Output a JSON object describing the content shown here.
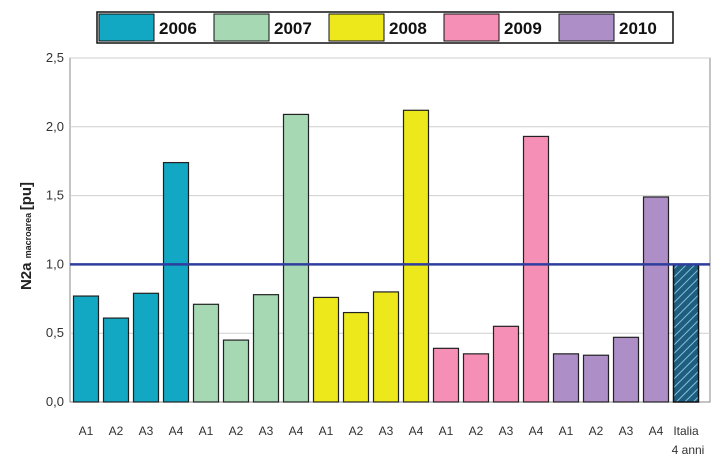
{
  "chart_data": {
    "type": "bar",
    "ylabel": {
      "main": "N2a",
      "subscript": "macroarea",
      "unit": "[pu]"
    },
    "ylim": [
      0,
      2.5
    ],
    "yticks": [
      "0,0",
      "0,5",
      "1,0",
      "1,5",
      "2,0",
      "2,5"
    ],
    "ytick_values": [
      0,
      0.5,
      1.0,
      1.5,
      2.0,
      2.5
    ],
    "grid": true,
    "legend_position": "top",
    "reference_line": {
      "value": 1.0,
      "color": "#2f3e9e"
    },
    "series": [
      {
        "name": "2006",
        "color": "#12a7c2",
        "categories": [
          "A1",
          "A2",
          "A3",
          "A4"
        ],
        "values": [
          0.77,
          0.61,
          0.79,
          1.74
        ]
      },
      {
        "name": "2007",
        "color": "#a6d8b4",
        "categories": [
          "A1",
          "A2",
          "A3",
          "A4"
        ],
        "values": [
          0.71,
          0.45,
          0.78,
          2.09
        ]
      },
      {
        "name": "2008",
        "color": "#ece81c",
        "categories": [
          "A1",
          "A2",
          "A3",
          "A4"
        ],
        "values": [
          0.76,
          0.65,
          0.8,
          2.12
        ]
      },
      {
        "name": "2009",
        "color": "#f58fb6",
        "categories": [
          "A1",
          "A2",
          "A3",
          "A4"
        ],
        "values": [
          0.39,
          0.35,
          0.55,
          1.93
        ]
      },
      {
        "name": "2010",
        "color": "#ad8ec6",
        "categories": [
          "A1",
          "A2",
          "A3",
          "A4"
        ],
        "values": [
          0.35,
          0.34,
          0.47,
          1.49
        ]
      }
    ],
    "italia_bar": {
      "label_line1": "Italia",
      "label_line2": "4 anni",
      "value": 1.0,
      "color": "#23688a"
    }
  }
}
